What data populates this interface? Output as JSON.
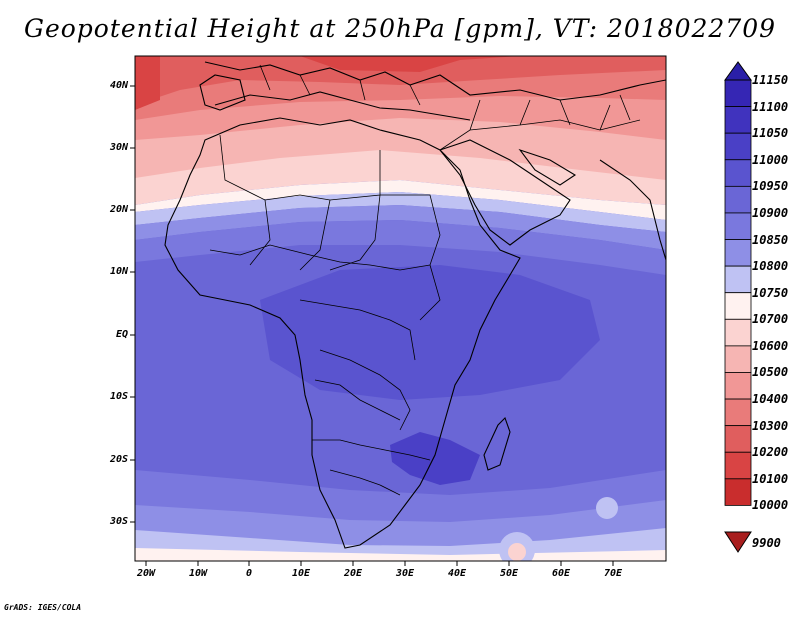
{
  "title": "Geopotential Height at 250hPa [gpm], VT: 2018022709",
  "credit": "GrADS: IGES/COLA",
  "lat_labels": [
    "40N",
    "30N",
    "20N",
    "10N",
    "EQ",
    "10S",
    "20S",
    "30S"
  ],
  "lon_labels": [
    "20W",
    "10W",
    "0",
    "10E",
    "20E",
    "30E",
    "40E",
    "50E",
    "60E",
    "70E"
  ],
  "legend": {
    "labels": [
      "11150",
      "11100",
      "11050",
      "11000",
      "10950",
      "10900",
      "10850",
      "10800",
      "10750",
      "10700",
      "10600",
      "10500",
      "10400",
      "10300",
      "10200",
      "10100",
      "10000",
      "9900"
    ],
    "colors": [
      "#2a1fa8",
      "#3526b4",
      "#4033be",
      "#4a40c6",
      "#5a54cf",
      "#6a66d6",
      "#7a78de",
      "#8e8fe6",
      "#bfc2f3",
      "#fff2f0",
      "#fbd3d1",
      "#f6b5b3",
      "#f19796",
      "#e97b7a",
      "#e05e5e",
      "#d94444",
      "#c92d2d",
      "#a81e1e"
    ]
  },
  "field_bands": [
    {
      "level": "10100",
      "color": "#d94444"
    },
    {
      "level": "10200",
      "color": "#e05e5e"
    },
    {
      "level": "10300",
      "color": "#e97b7a"
    },
    {
      "level": "10400",
      "color": "#f19796"
    },
    {
      "level": "10500",
      "color": "#f6b5b3"
    },
    {
      "level": "10600",
      "color": "#fbd3d1"
    },
    {
      "level": "10700",
      "color": "#fff2f0"
    },
    {
      "level": "10750",
      "color": "#bfc2f3"
    },
    {
      "level": "10800",
      "color": "#8e8fe6"
    },
    {
      "level": "10850",
      "color": "#7a78de"
    },
    {
      "level": "10900",
      "color": "#6a66d6"
    },
    {
      "level": "10950",
      "color": "#5a54cf"
    },
    {
      "level": "11000",
      "color": "#4a40c6"
    }
  ],
  "colors": {
    "coastline": "#000000",
    "frame": "#000000"
  }
}
